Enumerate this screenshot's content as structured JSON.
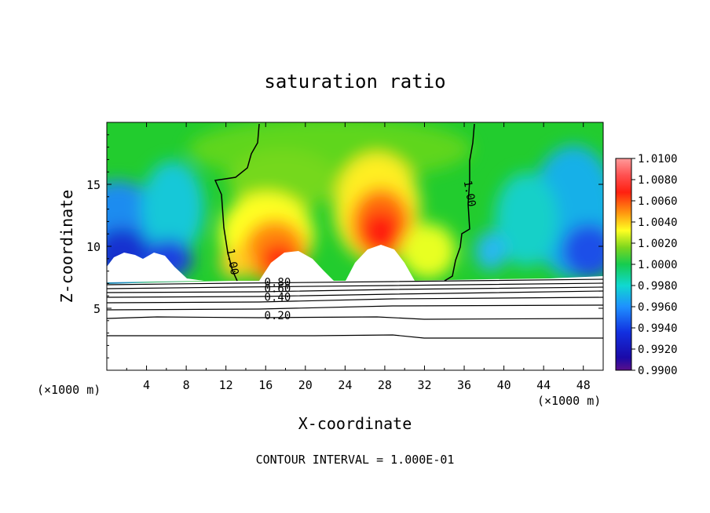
{
  "chart_data": {
    "type": "heatmap",
    "title": "saturation ratio",
    "xlabel": "X-coordinate",
    "ylabel": "Z-coordinate",
    "x_unit_left": "(×1000 m)",
    "x_unit_right": "(×1000 m)",
    "xlim": [
      0,
      50
    ],
    "ylim": [
      0,
      20
    ],
    "xticks": [
      4,
      8,
      12,
      16,
      20,
      24,
      28,
      32,
      36,
      40,
      44,
      48
    ],
    "yticks": [
      5,
      10,
      15
    ],
    "colorbar": {
      "min": 0.99,
      "max": 1.01,
      "labels": [
        "1.0100",
        "1.0080",
        "1.0060",
        "1.0040",
        "1.0020",
        "1.0000",
        "0.9980",
        "0.9960",
        "0.9940",
        "0.9920",
        "0.9900"
      ]
    },
    "contour_labels": [
      {
        "text": "1.00",
        "x": 12.3,
        "z": 8.7
      },
      {
        "text": "1.00",
        "x": 36.2,
        "z": 14.2
      },
      {
        "text": "0.80",
        "x": 17.2,
        "z": 6.8
      },
      {
        "text": "0.60",
        "x": 17.2,
        "z": 6.3
      },
      {
        "text": "0.40",
        "x": 17.2,
        "z": 5.6
      },
      {
        "text": "0.20",
        "x": 17.2,
        "z": 4.1
      }
    ],
    "footnote": "CONTOUR INTERVAL = 1.000E-01"
  }
}
